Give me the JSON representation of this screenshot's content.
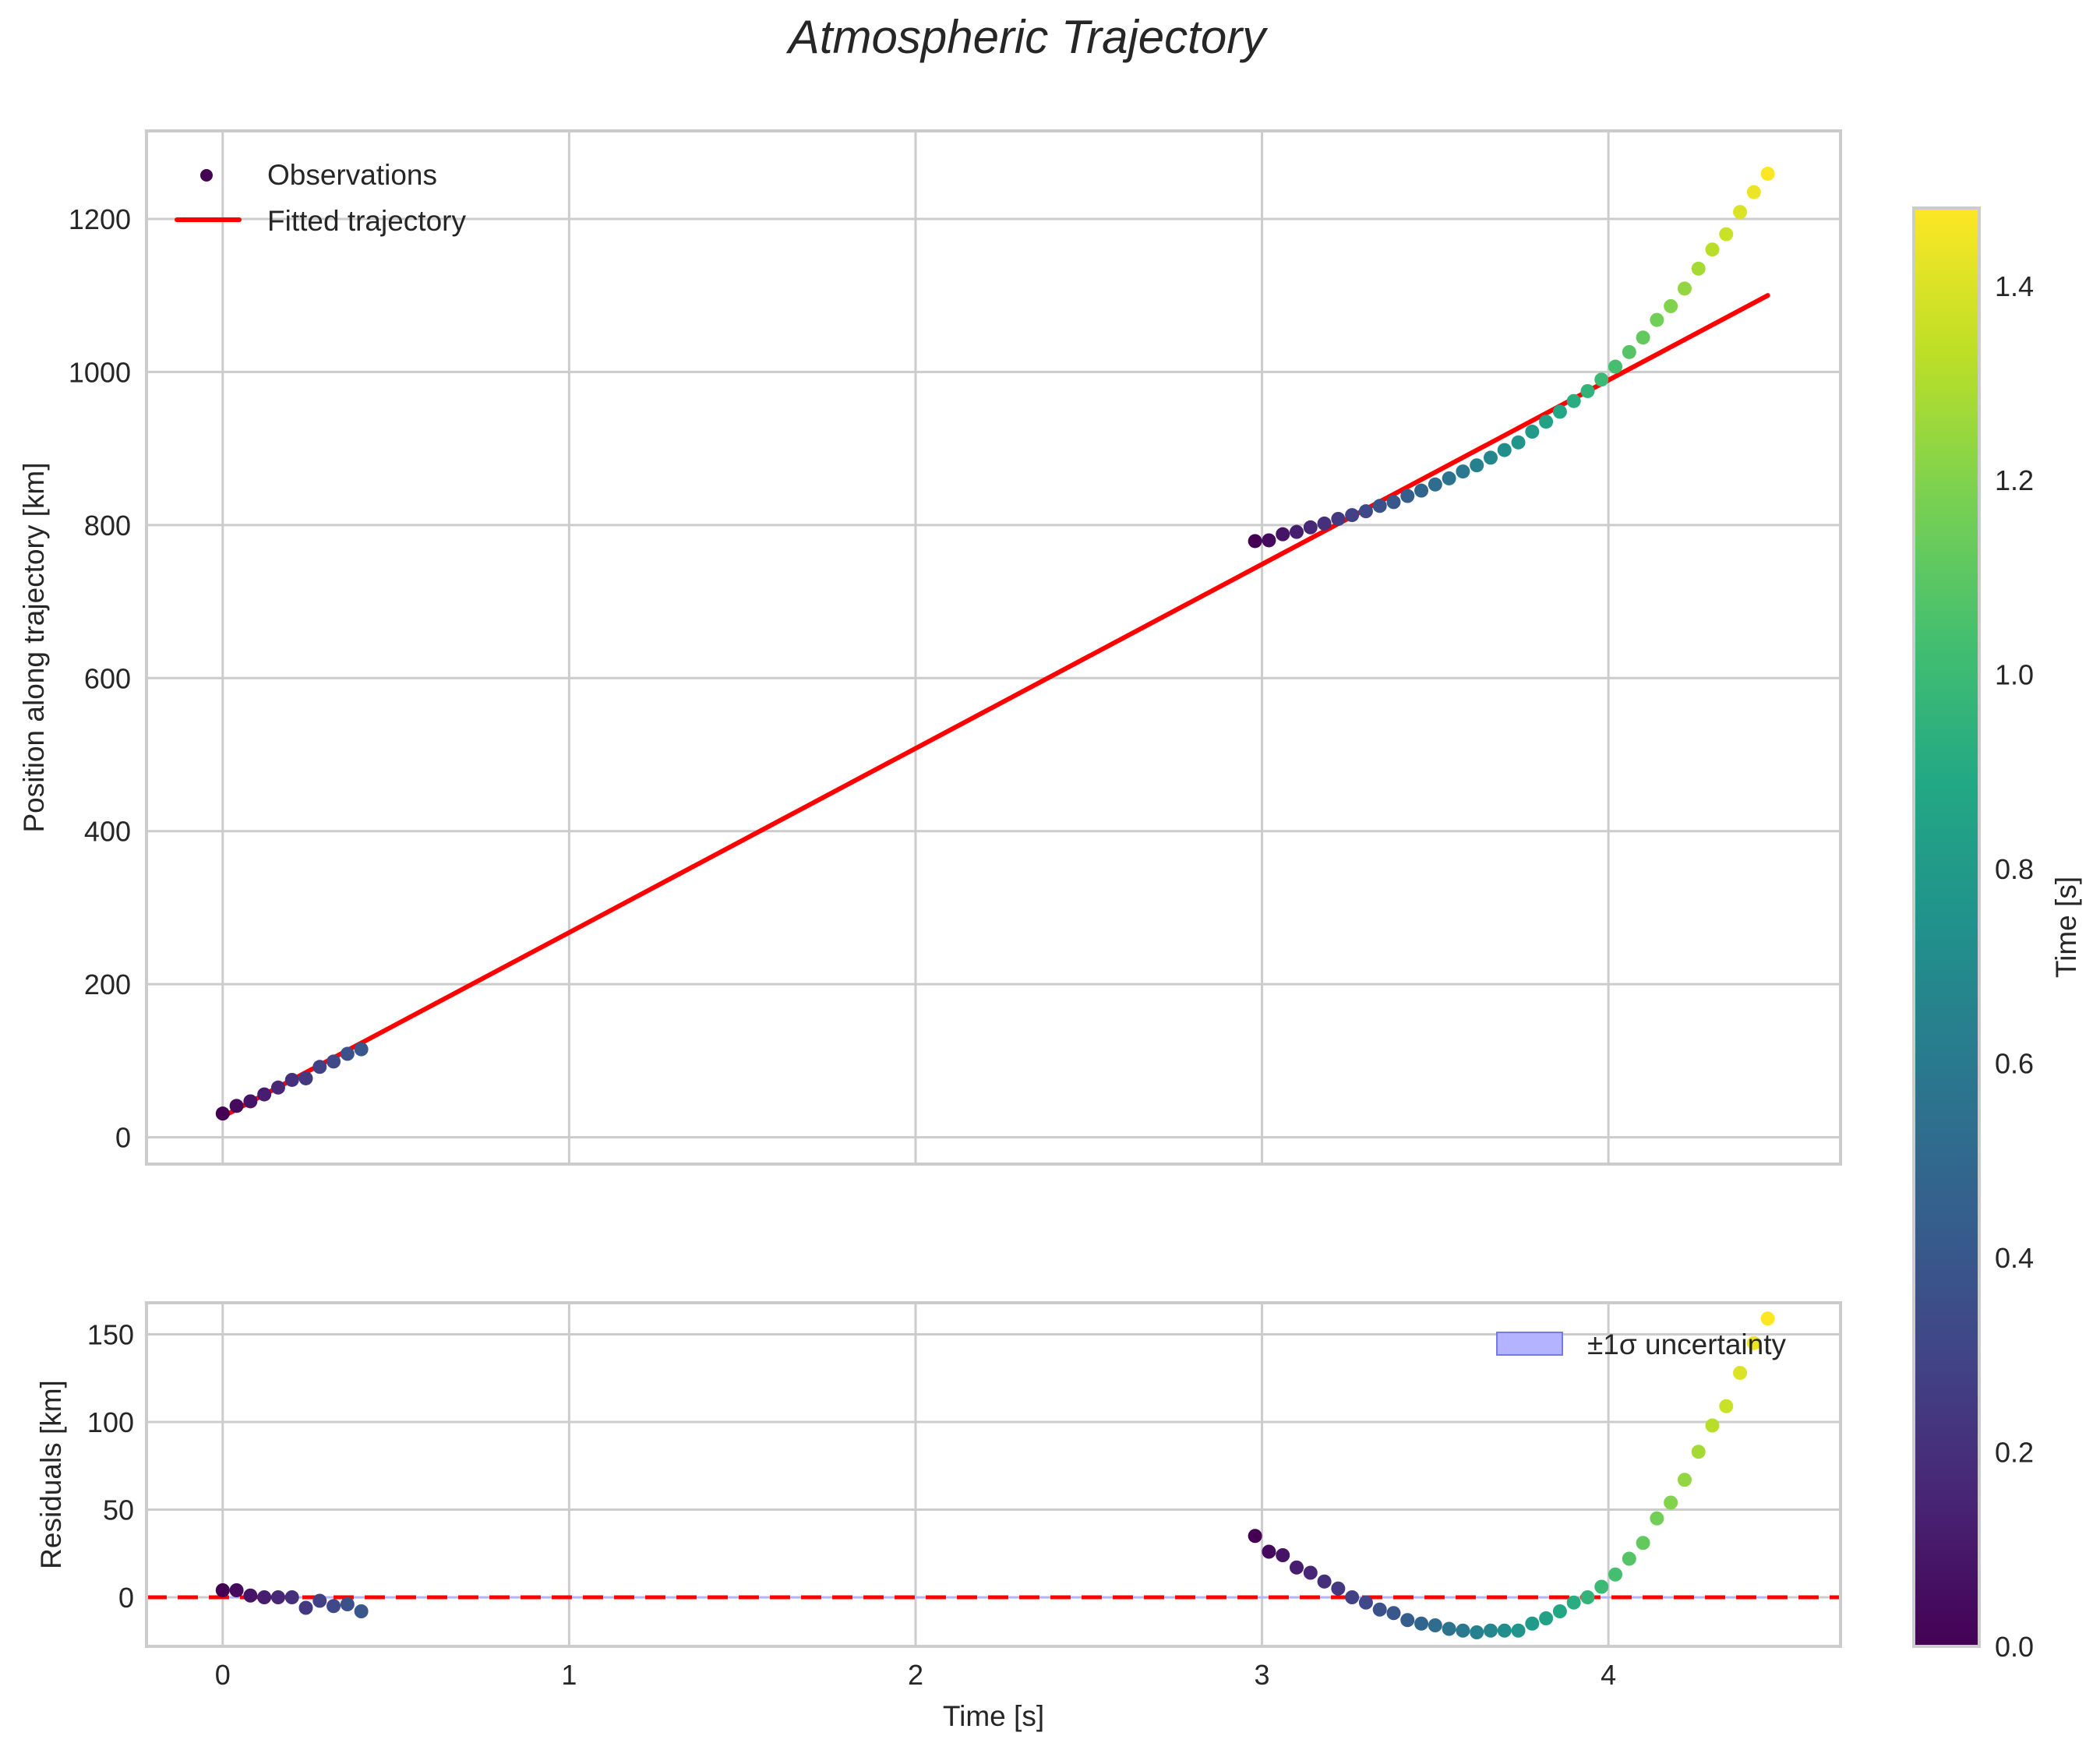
{
  "chart_data": {
    "type": "scatter",
    "title": "Atmospheric Trajectory",
    "colors": {
      "fit_line": "#ff0000",
      "zero_line": "#ff0000",
      "uncertainty_fill": "#b3b3ff",
      "uncertainty_edge": "#7777ee",
      "grid": "#cccccc",
      "axes_edge": "#cccccc",
      "text": "#262626"
    },
    "panels": [
      {
        "id": "trajectory",
        "type": "scatter+line",
        "xlabel": "",
        "ylabel": "Position along trajectory [km]",
        "xlim": [
          -0.22,
          4.67
        ],
        "ylim": [
          -35,
          1315
        ],
        "xticks": [
          0,
          1,
          2,
          3,
          4
        ],
        "xtick_labels_visible": false,
        "yticks": [
          0,
          200,
          400,
          600,
          800,
          1000,
          1200
        ],
        "ytick_labels": [
          "0",
          "200",
          "400",
          "600",
          "800",
          "1000",
          "1200"
        ],
        "grid": true,
        "legend": {
          "position": "upper left",
          "entries": [
            {
              "label": "Observations",
              "marker": "circle",
              "color": "#440154"
            },
            {
              "label": "Fitted trajectory",
              "marker": "line",
              "color": "#ff0000"
            }
          ]
        },
        "fit_line": {
          "x": [
            0.0,
            4.46
          ],
          "y": [
            27,
            1100
          ]
        }
      },
      {
        "id": "residuals",
        "type": "scatter",
        "xlabel": "Time [s]",
        "ylabel": "Residuals [km]",
        "xlim": [
          -0.22,
          4.67
        ],
        "ylim": [
          -28,
          168
        ],
        "xticks": [
          0,
          1,
          2,
          3,
          4
        ],
        "xtick_labels": [
          "0",
          "1",
          "2",
          "3",
          "4"
        ],
        "yticks": [
          0,
          50,
          100,
          150
        ],
        "ytick_labels": [
          "0",
          "50",
          "100",
          "150"
        ],
        "grid": true,
        "zero_line": {
          "y": 0,
          "style": "dashed",
          "color": "#ff0000"
        },
        "uncertainty_band": {
          "lower": -0.6,
          "upper": 0.6
        },
        "legend": {
          "position": "upper right",
          "entries": [
            {
              "label": "±1σ uncertainty",
              "marker": "patch",
              "color": "#b3b3ff"
            }
          ]
        }
      }
    ],
    "colorbar": {
      "label": "Time [s]",
      "cmap": "viridis",
      "range": [
        0.0,
        1.48
      ],
      "ticks": [
        0.0,
        0.2,
        0.4,
        0.6,
        0.8,
        1.0,
        1.2,
        1.4
      ],
      "tick_labels": [
        "0.0",
        "0.2",
        "0.4",
        "0.6",
        "0.8",
        "1.0",
        "1.2",
        "1.4"
      ]
    },
    "series": [
      {
        "name": "Observations (segment 1)",
        "t": [
          0.0,
          0.04,
          0.08,
          0.12,
          0.16,
          0.2,
          0.24,
          0.28,
          0.32,
          0.36,
          0.4
        ],
        "color_value": [
          0.0,
          0.04,
          0.08,
          0.12,
          0.16,
          0.2,
          0.24,
          0.28,
          0.32,
          0.36,
          0.4
        ],
        "position": [
          31,
          41,
          47,
          56,
          65,
          75,
          77,
          92,
          99,
          109,
          115
        ],
        "residual": [
          4,
          4,
          1,
          0,
          0,
          0,
          -6,
          -2,
          -5,
          -4,
          -8
        ]
      },
      {
        "name": "Observations (segment 2)",
        "t": [
          2.98,
          3.02,
          3.06,
          3.1,
          3.14,
          3.18,
          3.22,
          3.26,
          3.3,
          3.34,
          3.38,
          3.42,
          3.46,
          3.5,
          3.54,
          3.58,
          3.62,
          3.66,
          3.7,
          3.74,
          3.78,
          3.82,
          3.86,
          3.9,
          3.94,
          3.98,
          4.02,
          4.06,
          4.1,
          4.14,
          4.18,
          4.22,
          4.26,
          4.3,
          4.34,
          4.38,
          4.42,
          4.46
        ],
        "color_value": [
          0.0,
          0.04,
          0.08,
          0.12,
          0.16,
          0.2,
          0.24,
          0.28,
          0.32,
          0.36,
          0.4,
          0.44,
          0.48,
          0.52,
          0.56,
          0.6,
          0.64,
          0.68,
          0.72,
          0.76,
          0.8,
          0.84,
          0.88,
          0.92,
          0.96,
          1.0,
          1.04,
          1.08,
          1.12,
          1.16,
          1.2,
          1.24,
          1.28,
          1.32,
          1.36,
          1.4,
          1.44,
          1.48
        ],
        "position": [
          779,
          780,
          788,
          791,
          797,
          802,
          808,
          813,
          818,
          825,
          830,
          838,
          845,
          853,
          861,
          870,
          878,
          888,
          898,
          908,
          922,
          935,
          948,
          962,
          975,
          990,
          1007,
          1026,
          1045,
          1068,
          1086,
          1109,
          1135,
          1160,
          1180,
          1209,
          1235,
          1259
        ],
        "residual": [
          35,
          26,
          24,
          17,
          14,
          9,
          5,
          0,
          -3,
          -7,
          -9,
          -13,
          -15,
          -16,
          -18,
          -19,
          -20,
          -19,
          -19,
          -19,
          -15,
          -12,
          -8,
          -3,
          0,
          6,
          13,
          22,
          31,
          45,
          54,
          67,
          83,
          98,
          109,
          128,
          145,
          159
        ]
      }
    ]
  }
}
